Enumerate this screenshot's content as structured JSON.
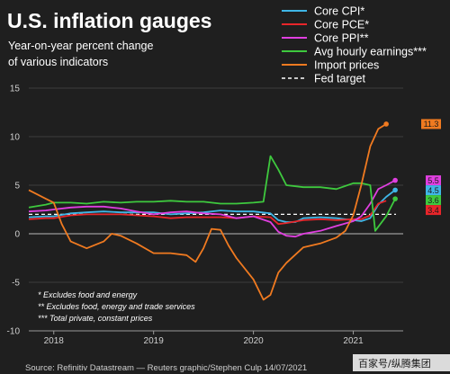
{
  "title": "U.S. inflation gauges",
  "subtitle_line1": "Year-on-year percent change",
  "subtitle_line2": "of various indicators",
  "notes": [
    "* Excludes food and energy",
    "** Excludes food, energy and trade services",
    "*** Total private, constant prices"
  ],
  "source": "Source: Refinitiv Datastream — Reuters graphic/Stephen Culp 14/07/2021",
  "watermark": "百家号/纵腾集团",
  "chart_data": {
    "type": "line",
    "ylim": [
      -10,
      15
    ],
    "yticks": [
      -10,
      -5,
      0,
      5,
      10,
      15
    ],
    "xlim": [
      2017.75,
      2021.5
    ],
    "xticks": [
      {
        "label": "2018",
        "x": 2018.0
      },
      {
        "label": "2019",
        "x": 2019.0
      },
      {
        "label": "2020",
        "x": 2020.0
      },
      {
        "label": "2021",
        "x": 2021.0
      }
    ],
    "legend_position": "top-right",
    "grid": "horizontal",
    "reference_line": {
      "name": "Fed target",
      "value": 2.0,
      "color": "#ffffff",
      "style": "dashed"
    },
    "series": [
      {
        "name": "Core CPI*",
        "color": "#3fb6e6",
        "end_label": "4.5",
        "end_marker": true,
        "points": [
          [
            2017.75,
            1.7
          ],
          [
            2017.92,
            1.8
          ],
          [
            2018.0,
            1.8
          ],
          [
            2018.17,
            2.1
          ],
          [
            2018.33,
            2.2
          ],
          [
            2018.5,
            2.3
          ],
          [
            2018.67,
            2.2
          ],
          [
            2018.83,
            2.2
          ],
          [
            2019.0,
            2.2
          ],
          [
            2019.17,
            2.0
          ],
          [
            2019.33,
            2.1
          ],
          [
            2019.5,
            2.2
          ],
          [
            2019.67,
            2.4
          ],
          [
            2019.83,
            2.3
          ],
          [
            2020.0,
            2.3
          ],
          [
            2020.17,
            2.1
          ],
          [
            2020.25,
            1.4
          ],
          [
            2020.33,
            1.2
          ],
          [
            2020.42,
            1.2
          ],
          [
            2020.5,
            1.6
          ],
          [
            2020.67,
            1.7
          ],
          [
            2020.83,
            1.6
          ],
          [
            2021.0,
            1.4
          ],
          [
            2021.08,
            1.3
          ],
          [
            2021.17,
            1.6
          ],
          [
            2021.25,
            3.0
          ],
          [
            2021.33,
            3.8
          ],
          [
            2021.42,
            4.5
          ]
        ]
      },
      {
        "name": "Core PCE*",
        "color": "#e8252a",
        "end_label": "3.4",
        "end_marker": false,
        "points": [
          [
            2017.75,
            1.5
          ],
          [
            2017.92,
            1.6
          ],
          [
            2018.0,
            1.6
          ],
          [
            2018.17,
            1.9
          ],
          [
            2018.33,
            2.0
          ],
          [
            2018.5,
            2.0
          ],
          [
            2018.67,
            2.0
          ],
          [
            2018.83,
            1.9
          ],
          [
            2019.0,
            1.8
          ],
          [
            2019.17,
            1.6
          ],
          [
            2019.33,
            1.7
          ],
          [
            2019.5,
            1.7
          ],
          [
            2019.67,
            1.7
          ],
          [
            2019.83,
            1.6
          ],
          [
            2020.0,
            1.8
          ],
          [
            2020.17,
            1.7
          ],
          [
            2020.25,
            1.0
          ],
          [
            2020.33,
            1.1
          ],
          [
            2020.5,
            1.4
          ],
          [
            2020.67,
            1.5
          ],
          [
            2020.83,
            1.4
          ],
          [
            2021.0,
            1.5
          ],
          [
            2021.08,
            1.5
          ],
          [
            2021.17,
            1.9
          ],
          [
            2021.25,
            3.1
          ],
          [
            2021.33,
            3.4
          ]
        ]
      },
      {
        "name": "Core PPI**",
        "color": "#e03fe0",
        "end_label": "5.5",
        "end_marker": true,
        "points": [
          [
            2017.75,
            2.3
          ],
          [
            2017.92,
            2.4
          ],
          [
            2018.0,
            2.5
          ],
          [
            2018.17,
            2.7
          ],
          [
            2018.33,
            2.8
          ],
          [
            2018.5,
            2.8
          ],
          [
            2018.67,
            2.6
          ],
          [
            2018.83,
            2.3
          ],
          [
            2019.0,
            2.0
          ],
          [
            2019.17,
            2.2
          ],
          [
            2019.33,
            2.3
          ],
          [
            2019.5,
            2.1
          ],
          [
            2019.67,
            2.0
          ],
          [
            2019.83,
            1.6
          ],
          [
            2020.0,
            1.8
          ],
          [
            2020.17,
            1.2
          ],
          [
            2020.25,
            0.2
          ],
          [
            2020.33,
            -0.2
          ],
          [
            2020.42,
            -0.3
          ],
          [
            2020.5,
            0.0
          ],
          [
            2020.67,
            0.3
          ],
          [
            2020.83,
            0.8
          ],
          [
            2021.0,
            1.3
          ],
          [
            2021.08,
            1.8
          ],
          [
            2021.17,
            3.1
          ],
          [
            2021.25,
            4.6
          ],
          [
            2021.33,
            5.0
          ],
          [
            2021.42,
            5.5
          ]
        ]
      },
      {
        "name": "Avg hourly earnings***",
        "color": "#3ec93e",
        "end_label": "3.6",
        "end_marker": true,
        "points": [
          [
            2017.75,
            2.7
          ],
          [
            2017.92,
            3.0
          ],
          [
            2018.0,
            3.2
          ],
          [
            2018.17,
            3.2
          ],
          [
            2018.33,
            3.1
          ],
          [
            2018.5,
            3.3
          ],
          [
            2018.67,
            3.2
          ],
          [
            2018.83,
            3.3
          ],
          [
            2019.0,
            3.3
          ],
          [
            2019.17,
            3.4
          ],
          [
            2019.33,
            3.3
          ],
          [
            2019.5,
            3.3
          ],
          [
            2019.67,
            3.1
          ],
          [
            2019.83,
            3.1
          ],
          [
            2020.0,
            3.2
          ],
          [
            2020.1,
            3.3
          ],
          [
            2020.17,
            8.0
          ],
          [
            2020.25,
            6.6
          ],
          [
            2020.33,
            5.0
          ],
          [
            2020.5,
            4.8
          ],
          [
            2020.67,
            4.8
          ],
          [
            2020.83,
            4.6
          ],
          [
            2021.0,
            5.2
          ],
          [
            2021.08,
            5.2
          ],
          [
            2021.17,
            5.0
          ],
          [
            2021.22,
            0.3
          ],
          [
            2021.33,
            1.8
          ],
          [
            2021.42,
            3.6
          ]
        ]
      },
      {
        "name": "Import prices",
        "color": "#f07a20",
        "end_label": "11.3",
        "end_marker": true,
        "points": [
          [
            2017.75,
            4.5
          ],
          [
            2017.92,
            3.6
          ],
          [
            2018.0,
            3.2
          ],
          [
            2018.08,
            1.0
          ],
          [
            2018.17,
            -0.8
          ],
          [
            2018.33,
            -1.5
          ],
          [
            2018.5,
            -0.8
          ],
          [
            2018.58,
            0.0
          ],
          [
            2018.67,
            -0.2
          ],
          [
            2018.83,
            -1.0
          ],
          [
            2019.0,
            -2.0
          ],
          [
            2019.17,
            -2.0
          ],
          [
            2019.33,
            -2.2
          ],
          [
            2019.42,
            -2.9
          ],
          [
            2019.5,
            -1.5
          ],
          [
            2019.58,
            0.5
          ],
          [
            2019.67,
            0.4
          ],
          [
            2019.75,
            -1.2
          ],
          [
            2019.83,
            -2.5
          ],
          [
            2020.0,
            -4.7
          ],
          [
            2020.1,
            -6.8
          ],
          [
            2020.17,
            -6.3
          ],
          [
            2020.25,
            -4.0
          ],
          [
            2020.33,
            -3.0
          ],
          [
            2020.5,
            -1.4
          ],
          [
            2020.67,
            -1.0
          ],
          [
            2020.83,
            -0.4
          ],
          [
            2020.92,
            0.3
          ],
          [
            2021.0,
            1.9
          ],
          [
            2021.08,
            5.0
          ],
          [
            2021.17,
            9.0
          ],
          [
            2021.25,
            10.8
          ],
          [
            2021.33,
            11.3
          ]
        ]
      }
    ]
  }
}
